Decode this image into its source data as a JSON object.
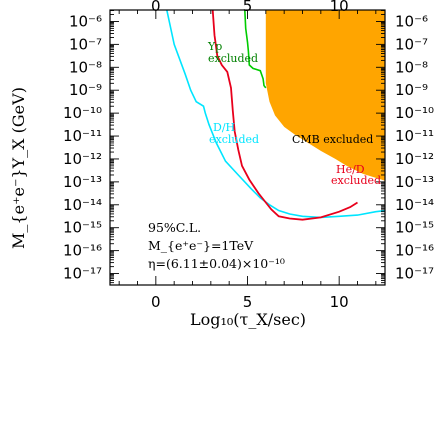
{
  "chart_data": {
    "type": "area",
    "xlabel": "Log₁₀(τ_X/sec)",
    "ylabel": "M_{e⁺e⁻}Y_X (GeV)",
    "xlim": [
      -2.5,
      12.5
    ],
    "ylim": [
      -17.5,
      -5.5
    ],
    "x_ticks": [
      0,
      5,
      10
    ],
    "x_tick_labels": [
      "0",
      "5",
      "10"
    ],
    "y_ticks": [
      -6,
      -7,
      -8,
      -9,
      -10,
      -11,
      -12,
      -13,
      -14,
      -15,
      -16,
      -17
    ],
    "y_tick_labels": [
      "10⁻⁶",
      "10⁻⁷",
      "10⁻⁸",
      "10⁻⁹",
      "10⁻¹⁰",
      "10⁻¹¹",
      "10⁻¹²",
      "10⁻¹³",
      "10⁻¹⁴",
      "10⁻¹⁵",
      "10⁻¹⁶",
      "10⁻¹⁷"
    ],
    "grid": false,
    "regions": [
      {
        "label": "CMB excluded",
        "fill": "#FFA500",
        "x": [
          6.0,
          6.0,
          12.5,
          12.5,
          11.3,
          10.4,
          9.8,
          9.0,
          8.3,
          7.6,
          7.0,
          6.5,
          6.2,
          6.0
        ],
        "y": [
          -5.5,
          -5.5,
          -5.5,
          -12.95,
          -12.65,
          -12.3,
          -12.0,
          -11.65,
          -11.3,
          -10.95,
          -10.6,
          -10.1,
          -9.5,
          -8.7
        ]
      }
    ],
    "series": [
      {
        "color": "#00CC00",
        "labels": [
          "Yp",
          "excluded"
        ],
        "x": [
          4.85,
          4.9,
          5.0,
          5.05,
          5.1,
          5.3,
          5.7,
          5.85,
          5.9,
          6.0
        ],
        "y": [
          -5.5,
          -6.3,
          -6.9,
          -7.3,
          -7.9,
          -8.05,
          -8.15,
          -8.5,
          -8.8,
          -8.9
        ]
      },
      {
        "color": "#00E5FF",
        "labels": [
          "D/H",
          "excluded"
        ],
        "x": [
          0.6,
          1.0,
          1.6,
          1.9,
          2.2,
          2.6,
          2.7,
          2.9,
          3.3,
          3.8,
          4.5,
          5.2,
          5.7,
          6.2,
          6.7,
          7.3,
          8.0,
          9.0,
          10.0,
          11.0,
          12.0,
          12.5
        ],
        "y": [
          -5.5,
          -7.0,
          -8.3,
          -9.0,
          -9.5,
          -9.7,
          -10.0,
          -10.5,
          -11.3,
          -12.1,
          -12.7,
          -13.3,
          -13.7,
          -14.0,
          -14.25,
          -14.4,
          -14.5,
          -14.55,
          -14.5,
          -14.45,
          -14.3,
          -14.25
        ]
      },
      {
        "color": "#E8001C",
        "labels": [
          "He/D",
          "excluded"
        ],
        "x": [
          3.1,
          3.2,
          3.35,
          3.6,
          3.9,
          4.1,
          4.2,
          4.3,
          4.5,
          4.7,
          5.1,
          5.6,
          6.0,
          6.3,
          6.7,
          7.3,
          8.0,
          9.0,
          10.0,
          10.6,
          11.0
        ],
        "y": [
          -5.5,
          -6.6,
          -7.5,
          -7.9,
          -8.2,
          -8.9,
          -9.9,
          -10.8,
          -11.6,
          -12.3,
          -12.9,
          -13.5,
          -13.9,
          -14.2,
          -14.5,
          -14.6,
          -14.65,
          -14.55,
          -14.3,
          -14.1,
          -13.9
        ]
      }
    ],
    "annotations": {
      "cl": "95%C.L.",
      "mass": "M_{e⁺e⁻}=1TeV",
      "eta": "η=(6.11±0.04)×10⁻¹⁰"
    },
    "region_labels": {
      "yp_1": "Yp",
      "yp_2": "excluded",
      "dh_1": "D/H",
      "dh_2": "excluded",
      "cmb": "CMB excluded",
      "hed_1": "He/D",
      "hed_2": "excluded"
    }
  }
}
